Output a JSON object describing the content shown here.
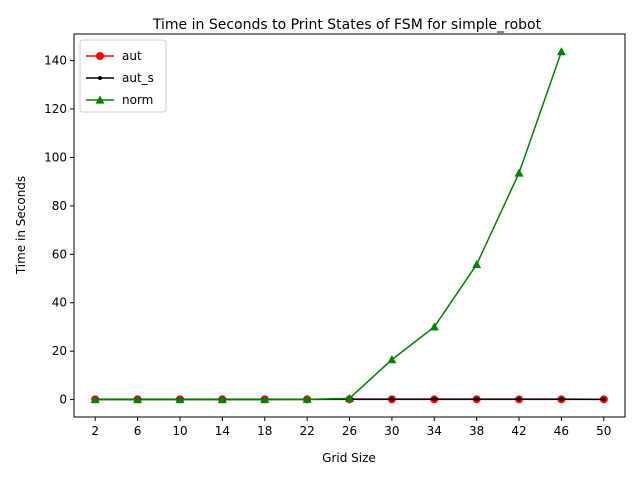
{
  "chart_data": {
    "type": "line",
    "title": "Time in Seconds to Print States of FSM for simple_robot",
    "xlabel": "Grid Size",
    "ylabel": "Time in Seconds",
    "x": [
      2,
      6,
      10,
      14,
      18,
      22,
      26,
      30,
      34,
      38,
      42,
      46,
      50
    ],
    "x_ticks": [
      "2",
      "6",
      "10",
      "14",
      "18",
      "22",
      "26",
      "30",
      "34",
      "38",
      "42",
      "46",
      "50"
    ],
    "y_ticks": [
      "0",
      "20",
      "40",
      "60",
      "80",
      "100",
      "120",
      "140"
    ],
    "ylim": [
      -7.2,
      151.0
    ],
    "xlim": [
      0,
      52
    ],
    "grid": false,
    "legend_position": "top-left",
    "series": [
      {
        "name": "aut",
        "color": "#ff0000",
        "marker": "circle",
        "x": [
          2,
          6,
          10,
          14,
          18,
          22,
          26,
          30,
          34,
          38,
          42,
          46,
          50
        ],
        "values": [
          0.1,
          0.1,
          0.1,
          0.1,
          0.1,
          0.1,
          0.1,
          0.1,
          0.1,
          0.1,
          0.1,
          0.1,
          0.1
        ]
      },
      {
        "name": "aut_s",
        "color": "#000000",
        "marker": "point",
        "x": [
          2,
          6,
          10,
          14,
          18,
          22,
          26,
          30,
          34,
          38,
          42,
          46,
          50
        ],
        "values": [
          0.1,
          0.1,
          0.1,
          0.1,
          0.1,
          0.1,
          0.2,
          0.2,
          0.2,
          0.2,
          0.2,
          0.2,
          0.1
        ]
      },
      {
        "name": "norm",
        "color": "#008000",
        "marker": "triangle",
        "x": [
          2,
          6,
          10,
          14,
          18,
          22,
          26,
          30,
          34,
          38,
          42,
          46
        ],
        "values": [
          0.0,
          0.0,
          0.0,
          0.0,
          0.0,
          0.1,
          0.5,
          16.5,
          30.0,
          55.8,
          93.6,
          143.7
        ]
      }
    ]
  }
}
